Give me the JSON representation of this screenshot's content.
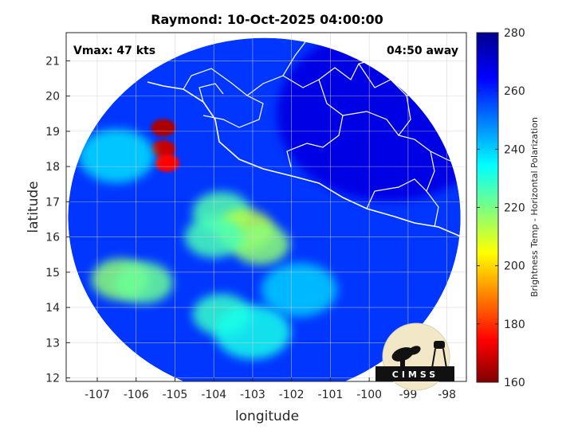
{
  "chart_data": {
    "type": "heatmap",
    "title": "Raymond: 10-Oct-2025 04:00:00",
    "xlabel": "longitude",
    "ylabel": "latitude",
    "xlim": [
      -107.8,
      -97.5
    ],
    "ylim": [
      11.9,
      21.8
    ],
    "x_ticks": [
      -107,
      -106,
      -105,
      -104,
      -103,
      -102,
      -101,
      -100,
      -99,
      -98
    ],
    "y_ticks": [
      12,
      13,
      14,
      15,
      16,
      17,
      18,
      19,
      20,
      21
    ],
    "grid": true,
    "annotations": {
      "vmax": "Vmax: 47 kts",
      "time_away": "04:50 away"
    },
    "colorbar": {
      "label": "Brightness Temp - Horizontal Polarization",
      "range": [
        160,
        280
      ],
      "ticks": [
        160,
        180,
        200,
        220,
        240,
        260,
        280
      ],
      "colormap": [
        "#800000",
        "#ff0000",
        "#ffff00",
        "#00ffff",
        "#0000ff",
        "#00008f"
      ]
    },
    "swath": {
      "center_lon": -102.7,
      "center_lat": 16.55,
      "radius_lon": 5.05,
      "radius_lat": 5.1
    },
    "features": [
      {
        "lon": -105.3,
        "lat": 19.1,
        "value": 165
      },
      {
        "lon": -105.3,
        "lat": 18.5,
        "value": 168
      },
      {
        "lon": -105.2,
        "lat": 18.1,
        "value": 175
      },
      {
        "lon": -103.8,
        "lat": 16.7,
        "value": 225
      },
      {
        "lon": -103.2,
        "lat": 16.2,
        "value": 212
      },
      {
        "lon": -102.8,
        "lat": 15.8,
        "value": 218
      },
      {
        "lon": -104.0,
        "lat": 16.0,
        "value": 226
      },
      {
        "lon": -106.4,
        "lat": 14.8,
        "value": 218
      },
      {
        "lon": -105.8,
        "lat": 14.7,
        "value": 222
      },
      {
        "lon": -103.8,
        "lat": 13.8,
        "value": 228
      },
      {
        "lon": -103.0,
        "lat": 13.3,
        "value": 232
      },
      {
        "lon": -106.5,
        "lat": 18.3,
        "value": 238
      },
      {
        "lon": -101.8,
        "lat": 14.5,
        "value": 240
      }
    ]
  },
  "logo": {
    "text": "CIMSS"
  }
}
